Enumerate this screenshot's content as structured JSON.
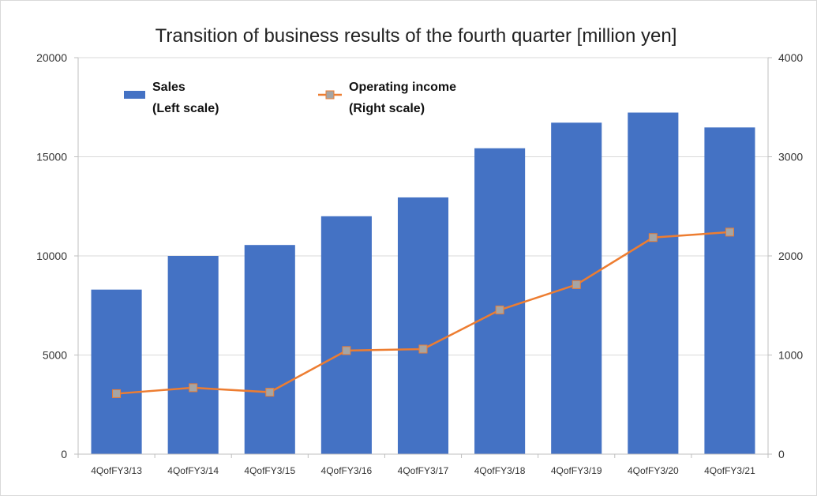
{
  "chart_data": {
    "type": "bar",
    "title": "Transition of business results of the fourth quarter [million yen]",
    "categories": [
      "4QofFY3/13",
      "4QofFY3/14",
      "4QofFY3/15",
      "4QofFY3/16",
      "4QofFY3/17",
      "4QofFY3/18",
      "4QofFY3/19",
      "4QofFY3/20",
      "4QofFY3/21"
    ],
    "series": [
      {
        "name": "Sales",
        "legend_line2": "(Left scale)",
        "kind": "bar",
        "axis": "left",
        "color": "#4472c4",
        "values": [
          8300,
          10000,
          10550,
          12000,
          12950,
          15430,
          16720,
          17230,
          16480
        ]
      },
      {
        "name": "Operating income",
        "legend_line2": "(Right scale)",
        "kind": "line",
        "axis": "right",
        "color": "#ed7d31",
        "marker_color": "#a5a5a5",
        "values": [
          610,
          670,
          625,
          1045,
          1060,
          1455,
          1710,
          2185,
          2240
        ]
      }
    ],
    "y_left": {
      "min": 0,
      "max": 20000,
      "ticks": [
        0,
        5000,
        10000,
        15000,
        20000
      ]
    },
    "y_right": {
      "min": 0,
      "max": 4000,
      "ticks": [
        0,
        1000,
        2000,
        3000,
        4000
      ]
    },
    "grid": true,
    "legend_position": "top-left"
  }
}
